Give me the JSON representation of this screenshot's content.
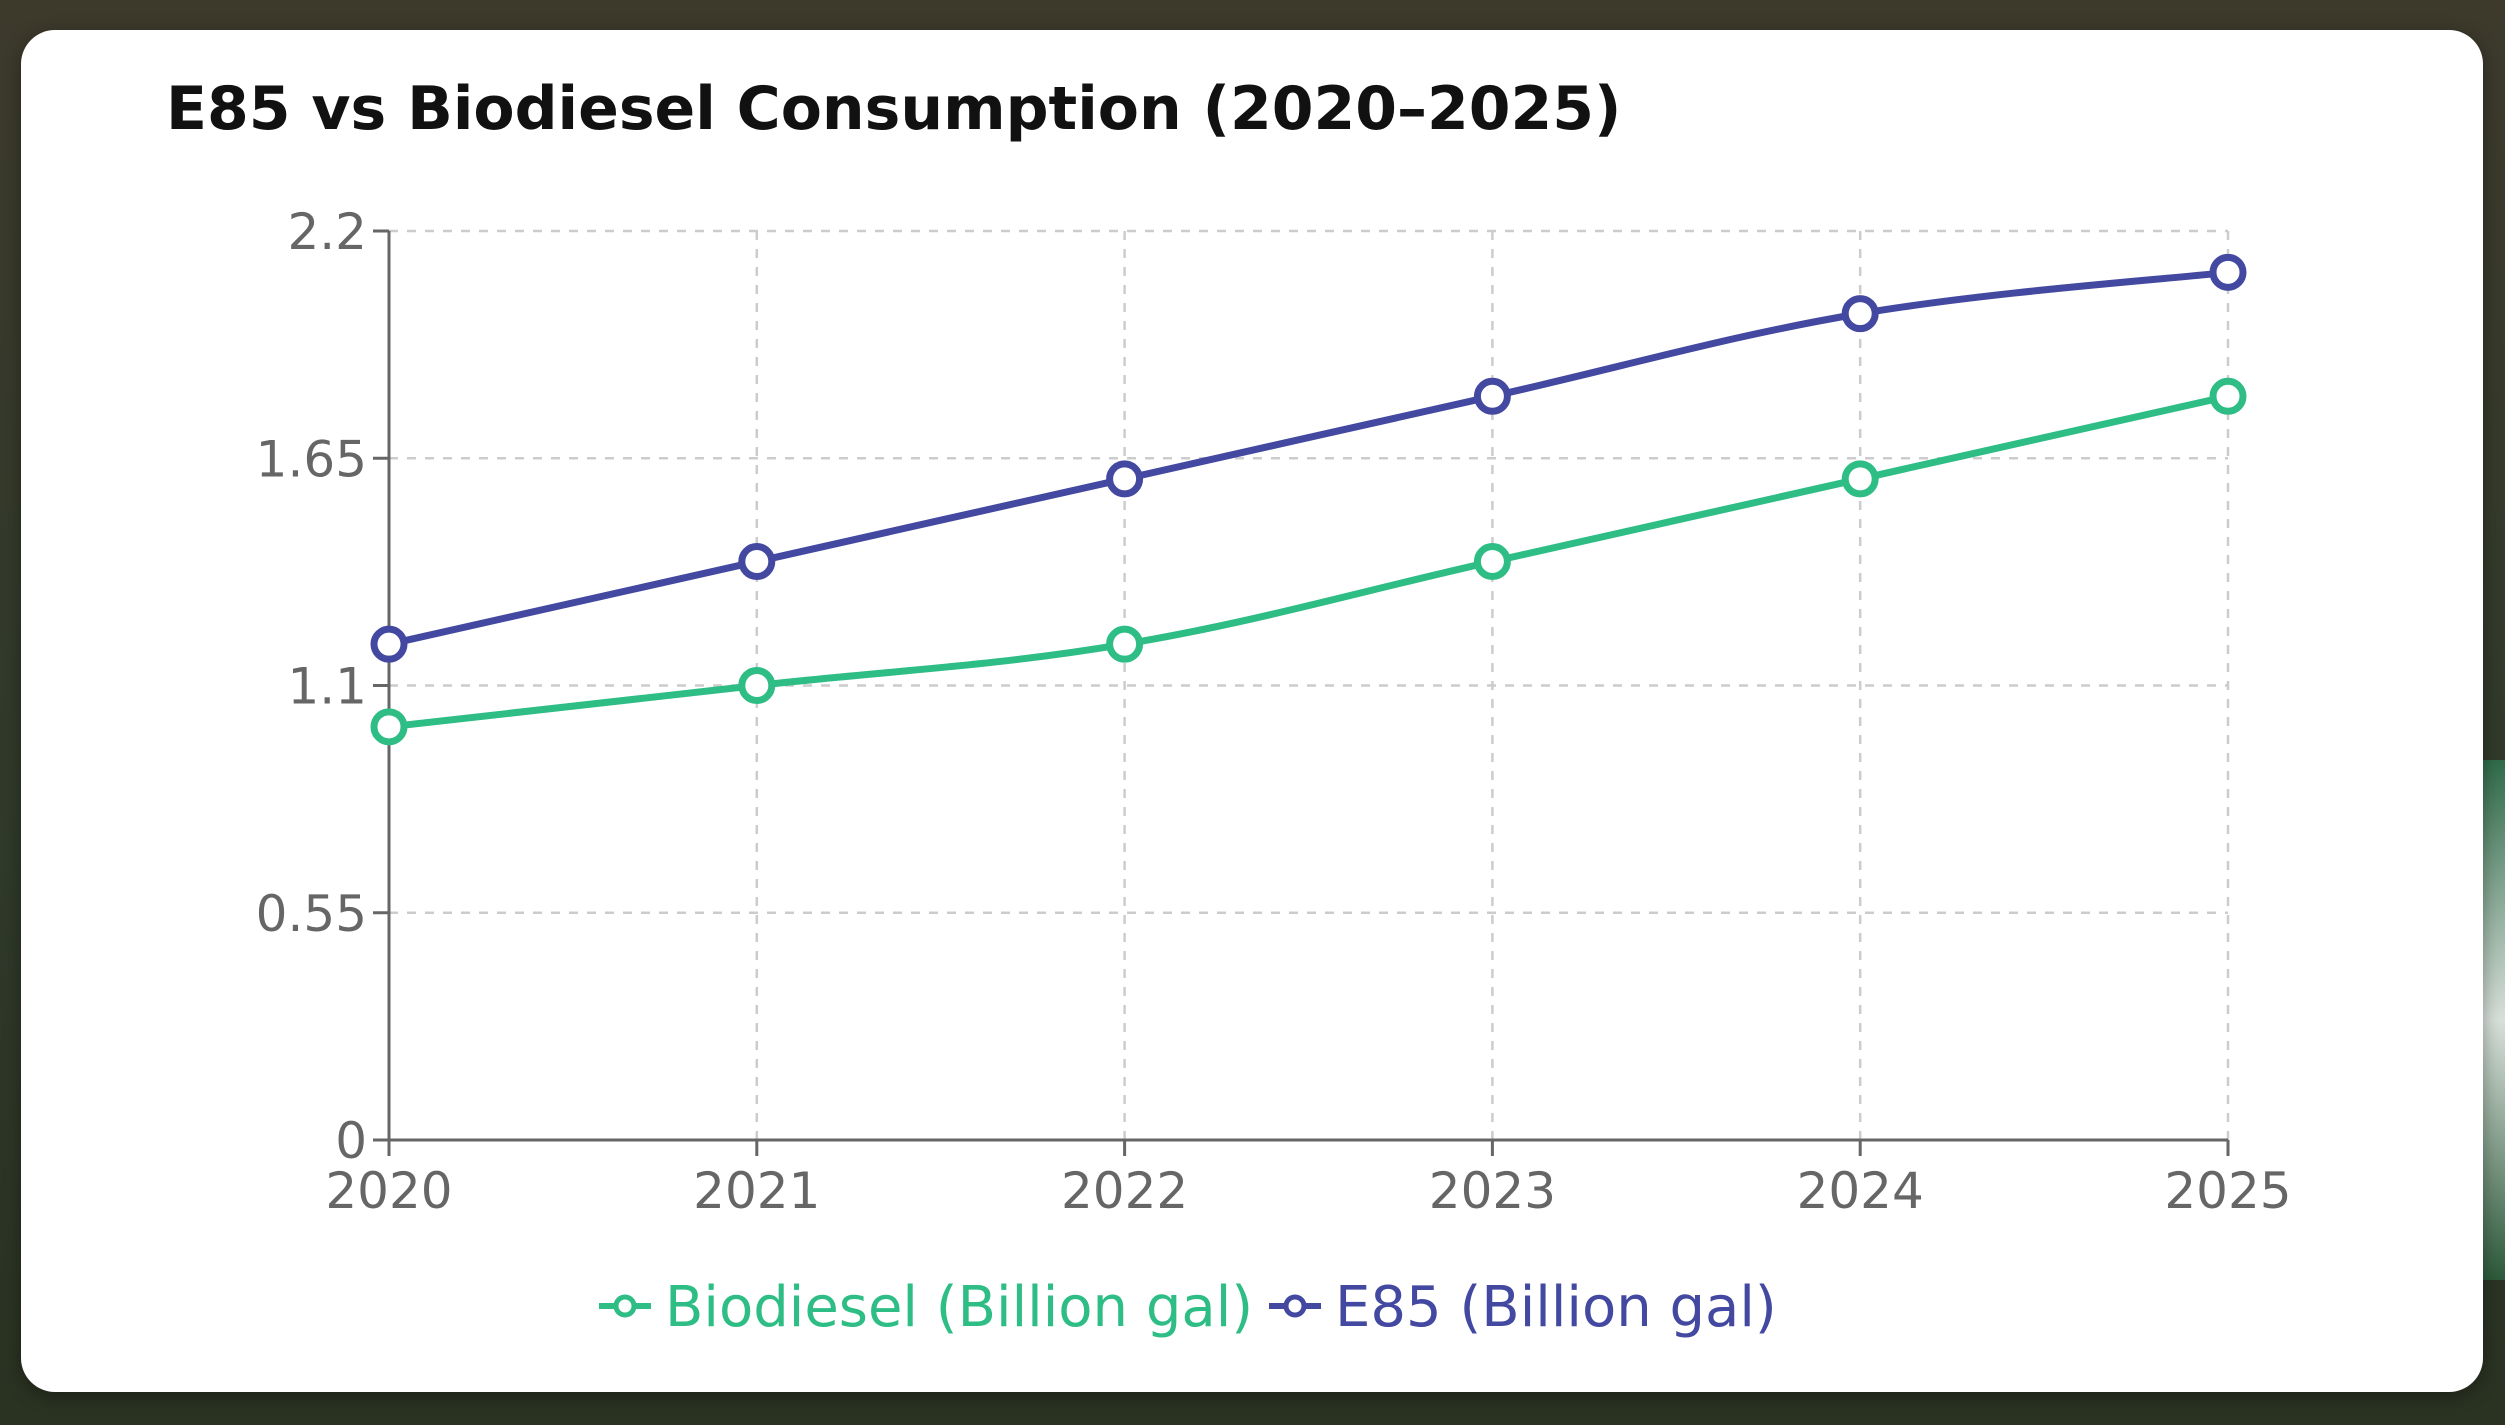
{
  "chart_data": {
    "type": "line",
    "title": "E85 vs Biodiesel Consumption (2020–2025)",
    "xlabel": "",
    "ylabel": "",
    "categories": [
      "2020",
      "2021",
      "2022",
      "2023",
      "2024",
      "2025"
    ],
    "ylim": [
      0,
      2.2
    ],
    "yticks": [
      "0",
      "0.55",
      "1.1",
      "1.65",
      "2.2"
    ],
    "grid": true,
    "legend_position": "bottom",
    "series": [
      {
        "name": "Biodiesel (Billion gal)",
        "color": "#2ebd85",
        "values": [
          1.0,
          1.1,
          1.2,
          1.4,
          1.6,
          1.8
        ]
      },
      {
        "name": "E85 (Billion gal)",
        "color": "#4348a0",
        "values": [
          1.2,
          1.4,
          1.6,
          1.8,
          2.0,
          2.1
        ]
      }
    ]
  }
}
